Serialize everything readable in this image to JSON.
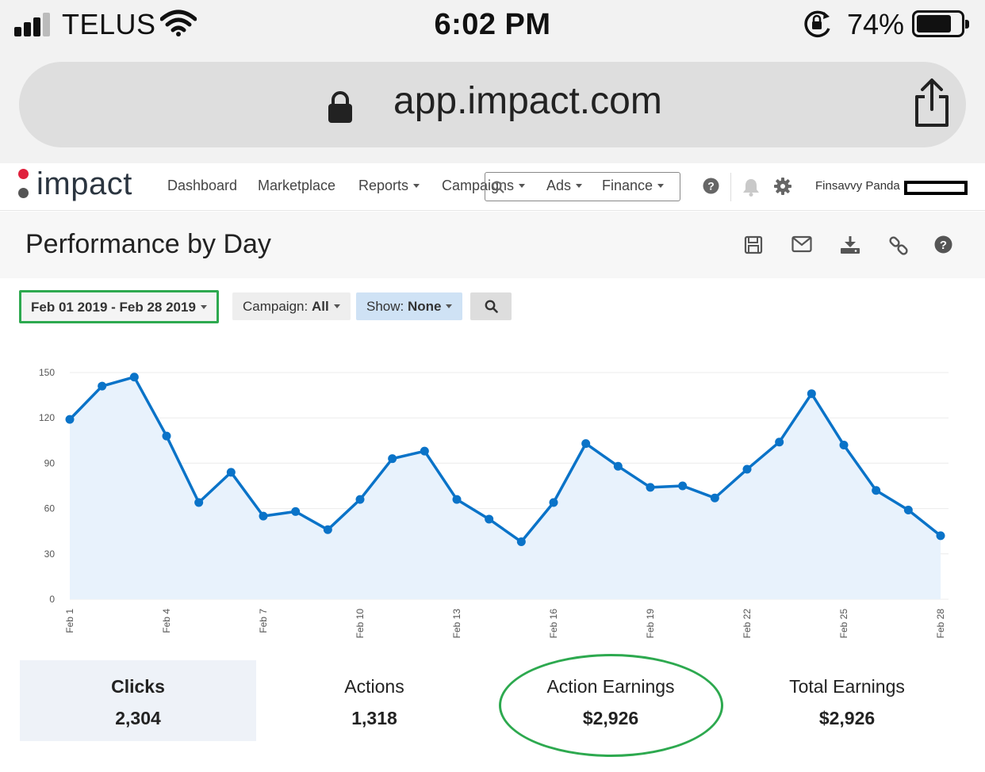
{
  "status_bar": {
    "carrier": "TELUS",
    "time": "6:02 PM",
    "battery_percent": "74%",
    "battery_level": 0.74,
    "signal_bars": 3
  },
  "browser": {
    "url": "app.impact.com"
  },
  "app": {
    "logo_text": "impact",
    "logo_accent_color": "#e0203c",
    "nav": {
      "dashboard": "Dashboard",
      "marketplace": "Marketplace",
      "reports": "Reports",
      "campaigns": "Campaigns",
      "ads": "Ads",
      "finance": "Finance"
    },
    "user_name": "Finsavvy Panda"
  },
  "page": {
    "title": "Performance by Day"
  },
  "filters": {
    "date_range": "Feb 01 2019 - Feb 28 2019",
    "campaign_label": "Campaign:",
    "campaign_value": "All",
    "show_label": "Show:",
    "show_value": "None"
  },
  "chart_data": {
    "type": "area",
    "x": [
      "Feb 1",
      "Feb 2",
      "Feb 3",
      "Feb 4",
      "Feb 5",
      "Feb 6",
      "Feb 7",
      "Feb 8",
      "Feb 9",
      "Feb 10",
      "Feb 11",
      "Feb 12",
      "Feb 13",
      "Feb 14",
      "Feb 15",
      "Feb 16",
      "Feb 17",
      "Feb 18",
      "Feb 19",
      "Feb 20",
      "Feb 21",
      "Feb 22",
      "Feb 23",
      "Feb 24",
      "Feb 25",
      "Feb 26",
      "Feb 27",
      "Feb 28"
    ],
    "values": [
      119,
      141,
      147,
      108,
      64,
      84,
      55,
      58,
      46,
      66,
      93,
      98,
      66,
      53,
      38,
      64,
      103,
      88,
      74,
      75,
      67,
      86,
      104,
      136,
      102,
      72,
      59,
      42
    ],
    "x_tick_labels": [
      "Feb 1",
      "Feb 4",
      "Feb 7",
      "Feb 10",
      "Feb 13",
      "Feb 16",
      "Feb 19",
      "Feb 22",
      "Feb 25",
      "Feb 28"
    ],
    "y_ticks": [
      "0",
      "30",
      "60",
      "90",
      "120",
      "150"
    ],
    "ylim": [
      0,
      150
    ],
    "grid": true,
    "line_color": "#0a73c8",
    "fill_color": "#e8f2fc"
  },
  "summary": [
    {
      "label": "Clicks",
      "value": "2,304"
    },
    {
      "label": "Actions",
      "value": "1,318"
    },
    {
      "label": "Action Earnings",
      "value": "$2,926"
    },
    {
      "label": "Total Earnings",
      "value": "$2,926"
    }
  ],
  "colors": {
    "highlight_green": "#2da94f",
    "active_card_bg": "#eef2f8",
    "show_filter_bg": "#cfe2f5"
  }
}
